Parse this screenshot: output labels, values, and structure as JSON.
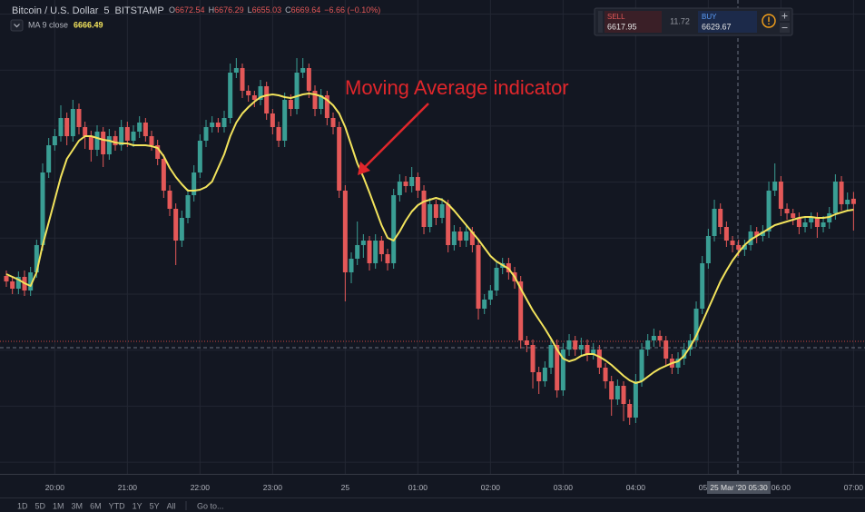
{
  "header": {
    "symbol": "Bitcoin / U.S. Dollar",
    "interval": "5",
    "exchange": "BITSTAMP",
    "ohlc_letters": [
      "O",
      "H",
      "L",
      "C"
    ],
    "change": "−6.66 (−0.10%)"
  },
  "trade_panel": {
    "sell_label": "SELL",
    "sell_price": "6617.95",
    "spread": "11.72",
    "buy_label": "BUY",
    "buy_price": "6629.67"
  },
  "toolbar": {
    "ranges": [
      "1D",
      "5D",
      "1M",
      "3M",
      "6M",
      "YTD",
      "1Y",
      "5Y",
      "All"
    ],
    "goto": "Go to..."
  },
  "chart_data": {
    "type": "candlestick",
    "annotation": "Moving Average indicator",
    "crosshair_label": "25 Mar '20  05:30",
    "up_color": "#3a9e94",
    "down_color": "#e45858",
    "ylim": [
      6522,
      6782
    ],
    "categories": [
      null,
      null,
      null,
      null,
      null,
      null,
      null,
      null,
      "20:00",
      null,
      null,
      null,
      null,
      null,
      null,
      null,
      null,
      null,
      null,
      null,
      "21:00",
      null,
      null,
      null,
      null,
      null,
      null,
      null,
      null,
      null,
      null,
      null,
      "22:00",
      null,
      null,
      null,
      null,
      null,
      null,
      null,
      null,
      null,
      null,
      null,
      "23:00",
      null,
      null,
      null,
      null,
      null,
      null,
      null,
      null,
      null,
      null,
      null,
      "25",
      null,
      null,
      null,
      null,
      null,
      null,
      null,
      null,
      null,
      null,
      null,
      "01:00",
      null,
      null,
      null,
      null,
      null,
      null,
      null,
      null,
      null,
      null,
      null,
      "02:00",
      null,
      null,
      null,
      null,
      null,
      null,
      null,
      null,
      null,
      null,
      null,
      "03:00",
      null,
      null,
      null,
      null,
      null,
      null,
      null,
      null,
      null,
      null,
      null,
      "04:00",
      null,
      null,
      null,
      null,
      null,
      null,
      null,
      null,
      null,
      null,
      null,
      "05:00",
      null,
      null,
      null,
      null,
      null,
      null,
      null,
      null,
      null,
      null,
      null,
      "06:00",
      null,
      null,
      null,
      null,
      null,
      null,
      null,
      null,
      null,
      null,
      null,
      "07:00"
    ],
    "candles": [
      [
        6630,
        6633,
        6624,
        6627
      ],
      [
        6627,
        6630,
        6620,
        6623
      ],
      [
        6623,
        6632.5,
        6620,
        6629.5
      ],
      [
        6629.5,
        6633,
        6619,
        6622
      ],
      [
        6622,
        6635,
        6619,
        6632
      ],
      [
        6632,
        6650,
        6629,
        6647
      ],
      [
        6647,
        6692,
        6644,
        6687
      ],
      [
        6687,
        6706,
        6684,
        6702
      ],
      [
        6702,
        6711,
        6699,
        6707
      ],
      [
        6707,
        6724,
        6704,
        6717
      ],
      [
        6717,
        6720,
        6702,
        6707
      ],
      [
        6707,
        6727,
        6704,
        6722
      ],
      [
        6722,
        6725,
        6708,
        6712
      ],
      [
        6712,
        6715,
        6700,
        6707
      ],
      [
        6707,
        6710,
        6693,
        6699.5
      ],
      [
        6699.5,
        6713,
        6696,
        6709.5
      ],
      [
        6709.5,
        6712,
        6690,
        6697
      ],
      [
        6697,
        6711,
        6694,
        6707
      ],
      [
        6707,
        6710,
        6699,
        6702
      ],
      [
        6702,
        6716,
        6699,
        6712
      ],
      [
        6712,
        6715,
        6701,
        6704.5
      ],
      [
        6704.5,
        6713,
        6701,
        6709.5
      ],
      [
        6709.5,
        6718,
        6706,
        6714.5
      ],
      [
        6714.5,
        6717,
        6704,
        6707
      ],
      [
        6707,
        6710,
        6699,
        6702
      ],
      [
        6702,
        6705,
        6691,
        6694.5
      ],
      [
        6694.5,
        6697,
        6673,
        6677
      ],
      [
        6677,
        6680,
        6663,
        6667
      ],
      [
        6667,
        6670,
        6636,
        6649.5
      ],
      [
        6649.5,
        6666,
        6646,
        6662
      ],
      [
        6662,
        6678,
        6659,
        6674.5
      ],
      [
        6674.5,
        6691,
        6671,
        6687
      ],
      [
        6687,
        6708,
        6684,
        6704.5
      ],
      [
        6704.5,
        6716,
        6701,
        6712
      ],
      [
        6712,
        6718,
        6709,
        6714.5
      ],
      [
        6714.5,
        6717,
        6709,
        6712
      ],
      [
        6712,
        6721,
        6709,
        6717
      ],
      [
        6717,
        6747,
        6714,
        6742
      ],
      [
        6742,
        6750,
        6739,
        6744.5
      ],
      [
        6744.5,
        6747,
        6728,
        6732
      ],
      [
        6732,
        6735,
        6726,
        6729.5
      ],
      [
        6729.5,
        6732,
        6723,
        6727
      ],
      [
        6727,
        6738,
        6724,
        6734.5
      ],
      [
        6734.5,
        6737,
        6716,
        6719.5
      ],
      [
        6719.5,
        6722,
        6708,
        6712
      ],
      [
        6712,
        6715,
        6701,
        6704.5
      ],
      [
        6704.5,
        6731,
        6701,
        6727
      ],
      [
        6727,
        6730,
        6718,
        6722
      ],
      [
        6722,
        6750,
        6719,
        6742
      ],
      [
        6742,
        6750,
        6739,
        6744.5
      ],
      [
        6744.5,
        6747,
        6728,
        6732
      ],
      [
        6732,
        6735,
        6718,
        6722
      ],
      [
        6722,
        6733,
        6719,
        6729.5
      ],
      [
        6729.5,
        6732,
        6713,
        6717
      ],
      [
        6717,
        6720,
        6708,
        6712
      ],
      [
        6712,
        6715,
        6673,
        6677
      ],
      [
        6677,
        6680,
        6616,
        6632
      ],
      [
        6632,
        6643,
        6626,
        6639.5
      ],
      [
        6639.5,
        6660,
        6636,
        6647
      ],
      [
        6647,
        6653,
        6640,
        6649.5
      ],
      [
        6649.5,
        6652,
        6633,
        6637
      ],
      [
        6637,
        6653,
        6634,
        6649.5
      ],
      [
        6649.5,
        6652,
        6638,
        6642
      ],
      [
        6642,
        6645,
        6633,
        6637
      ],
      [
        6637,
        6678,
        6634,
        6674.5
      ],
      [
        6674.5,
        6686,
        6671,
        6682
      ],
      [
        6682,
        6685,
        6676,
        6679.5
      ],
      [
        6679.5,
        6690,
        6676,
        6684.5
      ],
      [
        6684.5,
        6687,
        6673,
        6677
      ],
      [
        6677,
        6680,
        6653,
        6657
      ],
      [
        6657,
        6673,
        6654,
        6669.5
      ],
      [
        6669.5,
        6672,
        6658,
        6662
      ],
      [
        6662,
        6673,
        6659,
        6669.5
      ],
      [
        6669.5,
        6672,
        6643,
        6647
      ],
      [
        6647,
        6658,
        6644,
        6654.5
      ],
      [
        6654.5,
        6657,
        6646,
        6649.5
      ],
      [
        6649.5,
        6658,
        6646,
        6654.5
      ],
      [
        6654.5,
        6657,
        6643,
        6647
      ],
      [
        6647,
        6650,
        6606,
        6612
      ],
      [
        6612,
        6620,
        6609,
        6617
      ],
      [
        6617,
        6625,
        6614,
        6622
      ],
      [
        6622,
        6638,
        6619,
        6634.5
      ],
      [
        6634.5,
        6640,
        6631,
        6637
      ],
      [
        6637,
        6640,
        6628,
        6632
      ],
      [
        6632,
        6635,
        6623,
        6627
      ],
      [
        6627,
        6630,
        6590,
        6594.5
      ],
      [
        6594.5,
        6597,
        6588,
        6592
      ],
      [
        6592,
        6595,
        6568,
        6577
      ],
      [
        6577,
        6580,
        6565,
        6572
      ],
      [
        6572,
        6583,
        6569,
        6579.5
      ],
      [
        6579.5,
        6596,
        6576,
        6592
      ],
      [
        6592,
        6595,
        6563,
        6567
      ],
      [
        6567,
        6593,
        6564,
        6589.5
      ],
      [
        6589.5,
        6598,
        6586,
        6594.5
      ],
      [
        6594.5,
        6597,
        6586,
        6589.5
      ],
      [
        6589.5,
        6596,
        6586,
        6592
      ],
      [
        6592,
        6595,
        6583,
        6587
      ],
      [
        6587,
        6593,
        6584,
        6589.5
      ],
      [
        6589.5,
        6592,
        6576,
        6579.5
      ],
      [
        6579.5,
        6582,
        6568,
        6572
      ],
      [
        6572,
        6575,
        6553,
        6562
      ],
      [
        6562,
        6573,
        6559,
        6569.5
      ],
      [
        6569.5,
        6572,
        6550,
        6559.5
      ],
      [
        6559.5,
        6562,
        6548,
        6552
      ],
      [
        6552,
        6576,
        6549,
        6572
      ],
      [
        6572,
        6593,
        6569,
        6589.5
      ],
      [
        6589.5,
        6598,
        6586,
        6594.5
      ],
      [
        6594.5,
        6601,
        6591,
        6597
      ],
      [
        6597,
        6600,
        6591,
        6594.5
      ],
      [
        6594.5,
        6597,
        6581,
        6584.5
      ],
      [
        6584.5,
        6587,
        6576,
        6579.5
      ],
      [
        6579.5,
        6588,
        6576,
        6584.5
      ],
      [
        6584.5,
        6593,
        6581,
        6589.5
      ],
      [
        6589.5,
        6598,
        6586,
        6594.5
      ],
      [
        6594.5,
        6616,
        6591,
        6612
      ],
      [
        6612,
        6641,
        6609,
        6637
      ],
      [
        6637,
        6656,
        6634,
        6652
      ],
      [
        6652,
        6672,
        6649,
        6667
      ],
      [
        6667,
        6670,
        6653,
        6657
      ],
      [
        6657,
        6660,
        6646,
        6649.5
      ],
      [
        6649.5,
        6652,
        6643,
        6647
      ],
      [
        6647,
        6650,
        6641,
        6644.5
      ],
      [
        6644.5,
        6650,
        6641,
        6647
      ],
      [
        6647,
        6658,
        6644,
        6654.5
      ],
      [
        6654.5,
        6657,
        6648,
        6652
      ],
      [
        6652,
        6658,
        6649,
        6654.5
      ],
      [
        6654.5,
        6682,
        6651,
        6677
      ],
      [
        6677,
        6692,
        6674,
        6682
      ],
      [
        6682,
        6685,
        6663,
        6667
      ],
      [
        6667,
        6670,
        6661,
        6664.5
      ],
      [
        6664.5,
        6667,
        6658,
        6662
      ],
      [
        6662,
        6665,
        6653,
        6657
      ],
      [
        6657,
        6663,
        6654,
        6659.5
      ],
      [
        6659.5,
        6665,
        6656,
        6662
      ],
      [
        6662,
        6665,
        6651,
        6657
      ],
      [
        6657,
        6663,
        6654,
        6659.5
      ],
      [
        6659.5,
        6668,
        6656,
        6664.5
      ],
      [
        6664.5,
        6686,
        6661,
        6682
      ],
      [
        6682,
        6685,
        6666,
        6669.5
      ],
      [
        6669.5,
        6676,
        6666,
        6672
      ],
      [
        6672.54,
        6676.29,
        6655.03,
        6669.64
      ]
    ],
    "ma": {
      "name": "MA 9 close",
      "color": "#f2e35c",
      "values": [
        6631,
        6629.5,
        6628,
        6626,
        6624.5,
        6632,
        6647,
        6659.5,
        6672,
        6684.5,
        6694.5,
        6699.5,
        6704.5,
        6707,
        6707,
        6706,
        6705,
        6704.5,
        6703.5,
        6703,
        6703,
        6702,
        6702,
        6702,
        6701.5,
        6700.5,
        6696,
        6689.5,
        6684.5,
        6680.5,
        6677,
        6677,
        6677.5,
        6679,
        6682,
        6689.5,
        6697,
        6707,
        6714.5,
        6719.5,
        6723,
        6726,
        6728.5,
        6729.5,
        6730,
        6729.5,
        6728.5,
        6728,
        6729,
        6730,
        6730.5,
        6730,
        6729,
        6727,
        6724,
        6719.5,
        6712,
        6702,
        6692,
        6684.5,
        6676,
        6667,
        6658,
        6651,
        6649.5,
        6654.5,
        6660.5,
        6665.5,
        6669,
        6671,
        6672,
        6673,
        6672,
        6669.5,
        6666,
        6662,
        6658,
        6654,
        6650,
        6645.5,
        6641,
        6638,
        6636,
        6634,
        6629.5,
        6623,
        6617,
        6611,
        6606,
        6601,
        6595.5,
        6589.5,
        6584.5,
        6583,
        6584,
        6586,
        6587,
        6587,
        6585.5,
        6583.5,
        6581,
        6578,
        6575,
        6572.5,
        6571,
        6572,
        6574.5,
        6577,
        6579,
        6580.5,
        6582,
        6583,
        6586,
        6591,
        6597,
        6604.5,
        6612,
        6619.5,
        6627,
        6633,
        6638.5,
        6643,
        6647,
        6650,
        6652,
        6654,
        6656,
        6658,
        6659,
        6660,
        6661,
        6662,
        6662.5,
        6662.5,
        6662,
        6662,
        6662.5,
        6664,
        6665,
        6666,
        6666.49
      ]
    }
  }
}
